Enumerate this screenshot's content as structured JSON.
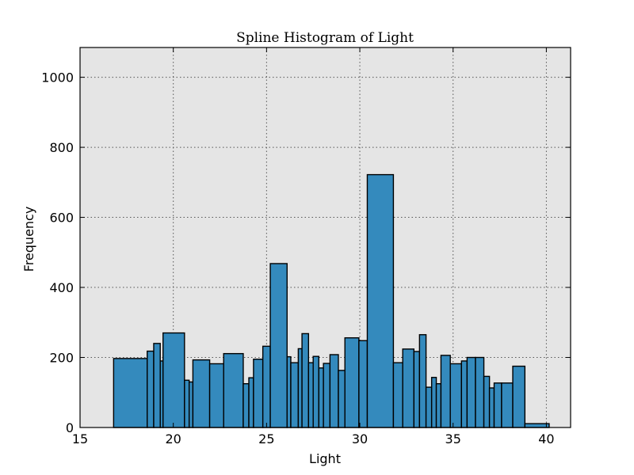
{
  "chart_data": {
    "type": "bar",
    "title": "Spline Histogram of Light",
    "xlabel": "Light",
    "ylabel": "Frequency",
    "xlim": [
      15,
      41.3
    ],
    "ylim": [
      0,
      1085
    ],
    "xticks": [
      15,
      20,
      25,
      30,
      35,
      40
    ],
    "yticks": [
      0,
      200,
      400,
      600,
      800,
      1000
    ],
    "grid": true,
    "colors": {
      "bar": "#348abd",
      "plot_bg": "#e5e5e5",
      "edge": "#000000"
    },
    "bars": [
      {
        "x0": 16.8,
        "x1": 18.6,
        "value": 197
      },
      {
        "x0": 18.6,
        "x1": 18.95,
        "value": 218
      },
      {
        "x0": 18.95,
        "x1": 19.3,
        "value": 240
      },
      {
        "x0": 19.3,
        "x1": 19.45,
        "value": 190
      },
      {
        "x0": 19.45,
        "x1": 20.6,
        "value": 270
      },
      {
        "x0": 20.6,
        "x1": 20.85,
        "value": 135
      },
      {
        "x0": 20.85,
        "x1": 21.05,
        "value": 130
      },
      {
        "x0": 21.05,
        "x1": 21.95,
        "value": 193
      },
      {
        "x0": 21.95,
        "x1": 22.7,
        "value": 182
      },
      {
        "x0": 22.7,
        "x1": 23.75,
        "value": 211
      },
      {
        "x0": 23.75,
        "x1": 24.05,
        "value": 125
      },
      {
        "x0": 24.05,
        "x1": 24.3,
        "value": 142
      },
      {
        "x0": 24.3,
        "x1": 24.8,
        "value": 195
      },
      {
        "x0": 24.8,
        "x1": 25.2,
        "value": 232
      },
      {
        "x0": 25.2,
        "x1": 26.1,
        "value": 468
      },
      {
        "x0": 26.1,
        "x1": 26.3,
        "value": 202
      },
      {
        "x0": 26.3,
        "x1": 26.7,
        "value": 185
      },
      {
        "x0": 26.7,
        "x1": 26.9,
        "value": 225
      },
      {
        "x0": 26.9,
        "x1": 27.25,
        "value": 268
      },
      {
        "x0": 27.25,
        "x1": 27.5,
        "value": 185
      },
      {
        "x0": 27.5,
        "x1": 27.8,
        "value": 203
      },
      {
        "x0": 27.8,
        "x1": 28.05,
        "value": 170
      },
      {
        "x0": 28.05,
        "x1": 28.4,
        "value": 183
      },
      {
        "x0": 28.4,
        "x1": 28.85,
        "value": 208
      },
      {
        "x0": 28.85,
        "x1": 29.2,
        "value": 163
      },
      {
        "x0": 29.2,
        "x1": 29.95,
        "value": 256
      },
      {
        "x0": 29.95,
        "x1": 30.4,
        "value": 248
      },
      {
        "x0": 30.4,
        "x1": 31.8,
        "value": 722
      },
      {
        "x0": 31.8,
        "x1": 32.3,
        "value": 185
      },
      {
        "x0": 32.3,
        "x1": 32.9,
        "value": 224
      },
      {
        "x0": 32.9,
        "x1": 33.2,
        "value": 217
      },
      {
        "x0": 33.2,
        "x1": 33.55,
        "value": 265
      },
      {
        "x0": 33.55,
        "x1": 33.85,
        "value": 115
      },
      {
        "x0": 33.85,
        "x1": 34.1,
        "value": 143
      },
      {
        "x0": 34.1,
        "x1": 34.35,
        "value": 125
      },
      {
        "x0": 34.35,
        "x1": 34.85,
        "value": 206
      },
      {
        "x0": 34.85,
        "x1": 35.45,
        "value": 182
      },
      {
        "x0": 35.45,
        "x1": 35.75,
        "value": 190
      },
      {
        "x0": 35.75,
        "x1": 36.2,
        "value": 200
      },
      {
        "x0": 36.2,
        "x1": 36.65,
        "value": 200
      },
      {
        "x0": 36.65,
        "x1": 36.95,
        "value": 146
      },
      {
        "x0": 36.95,
        "x1": 37.2,
        "value": 113
      },
      {
        "x0": 37.2,
        "x1": 37.6,
        "value": 127
      },
      {
        "x0": 37.6,
        "x1": 38.2,
        "value": 127
      },
      {
        "x0": 38.2,
        "x1": 38.85,
        "value": 175
      },
      {
        "x0": 38.85,
        "x1": 40.15,
        "value": 11
      }
    ]
  }
}
